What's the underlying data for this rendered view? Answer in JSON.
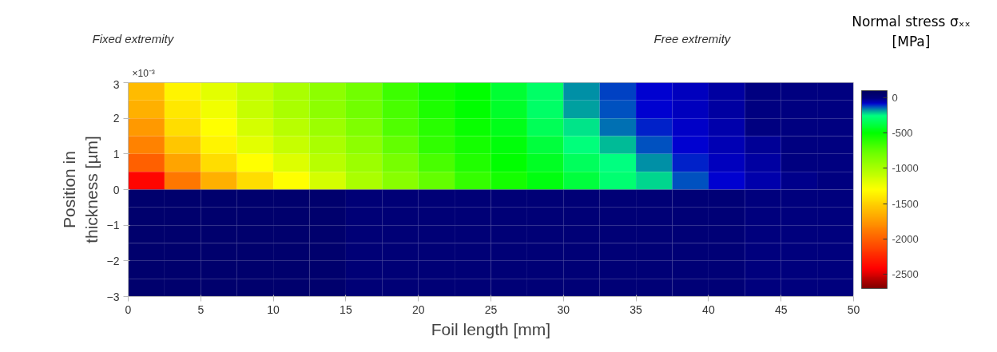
{
  "chart_data": {
    "type": "heatmap",
    "xlabel": "Foil length [mm]",
    "ylabel": "Position in thickness [µm]",
    "clabel": "Normal stress σₓₓ [MPa]",
    "annotations": [
      "Fixed extremity",
      "Free extremity",
      "×10⁻³"
    ],
    "x": [
      1.25,
      3.75,
      6.25,
      8.75,
      11.25,
      13.75,
      16.25,
      18.75,
      21.25,
      23.75,
      26.25,
      28.75,
      31.25,
      33.75,
      36.25,
      38.75,
      41.25,
      43.75,
      46.25,
      48.75
    ],
    "y": [
      2.75,
      2.25,
      1.75,
      1.25,
      0.75,
      0.25,
      -0.25,
      -0.75,
      -1.25,
      -1.75,
      -2.25,
      -2.75
    ],
    "xlim": [
      0,
      50
    ],
    "xticks": [
      0,
      5,
      10,
      15,
      20,
      25,
      30,
      35,
      40,
      45,
      50
    ],
    "ylim": [
      -3,
      3
    ],
    "yticks": [
      -3,
      -2,
      -1,
      0,
      1,
      2,
      3
    ],
    "clim": [
      -2700,
      100
    ],
    "cticks": [
      0,
      -500,
      -1000,
      -1500,
      -2000,
      -2500
    ],
    "cells": [
      [
        -1600,
        -1350,
        -1200,
        -1100,
        -1000,
        -900,
        -800,
        -650,
        -550,
        -500,
        -400,
        -300,
        -170,
        -120,
        -80,
        -60,
        -30,
        0,
        0,
        0
      ],
      [
        -1650,
        -1400,
        -1250,
        -1100,
        -1000,
        -900,
        -800,
        -680,
        -570,
        -500,
        -420,
        -300,
        -180,
        -130,
        -80,
        -60,
        -30,
        0,
        0,
        0
      ],
      [
        -1750,
        -1450,
        -1300,
        -1150,
        -1050,
        -950,
        -850,
        -700,
        -600,
        -520,
        -450,
        -330,
        -230,
        -150,
        -100,
        -70,
        -40,
        0,
        0,
        0
      ],
      [
        -1850,
        -1550,
        -1350,
        -1200,
        -1100,
        -1000,
        -900,
        -750,
        -620,
        -550,
        -480,
        -380,
        -260,
        -200,
        -130,
        -80,
        -50,
        -20,
        0,
        0
      ],
      [
        -2000,
        -1700,
        -1450,
        -1300,
        -1180,
        -1050,
        -950,
        -820,
        -680,
        -580,
        -500,
        -430,
        -320,
        -250,
        -170,
        -100,
        -60,
        -30,
        0,
        0
      ],
      [
        -2400,
        -1900,
        -1650,
        -1450,
        -1300,
        -1150,
        -1000,
        -880,
        -750,
        -630,
        -550,
        -470,
        -380,
        -280,
        -220,
        -130,
        -80,
        -40,
        -10,
        0
      ],
      [
        60,
        60,
        60,
        60,
        60,
        60,
        30,
        30,
        30,
        30,
        30,
        30,
        30,
        30,
        30,
        30,
        30,
        10,
        10,
        10
      ],
      [
        60,
        60,
        60,
        60,
        60,
        60,
        30,
        30,
        30,
        30,
        30,
        30,
        30,
        30,
        30,
        30,
        30,
        10,
        10,
        10
      ],
      [
        60,
        60,
        60,
        60,
        60,
        60,
        30,
        30,
        30,
        30,
        30,
        30,
        30,
        30,
        30,
        30,
        30,
        10,
        10,
        10
      ],
      [
        60,
        60,
        60,
        60,
        60,
        60,
        30,
        30,
        30,
        30,
        30,
        30,
        30,
        30,
        30,
        30,
        30,
        10,
        10,
        10
      ],
      [
        60,
        60,
        60,
        60,
        60,
        60,
        30,
        30,
        30,
        30,
        30,
        30,
        30,
        30,
        30,
        30,
        30,
        10,
        10,
        10
      ],
      [
        60,
        60,
        60,
        60,
        60,
        60,
        30,
        30,
        30,
        30,
        30,
        30,
        30,
        30,
        30,
        30,
        30,
        10,
        10,
        10
      ]
    ]
  }
}
